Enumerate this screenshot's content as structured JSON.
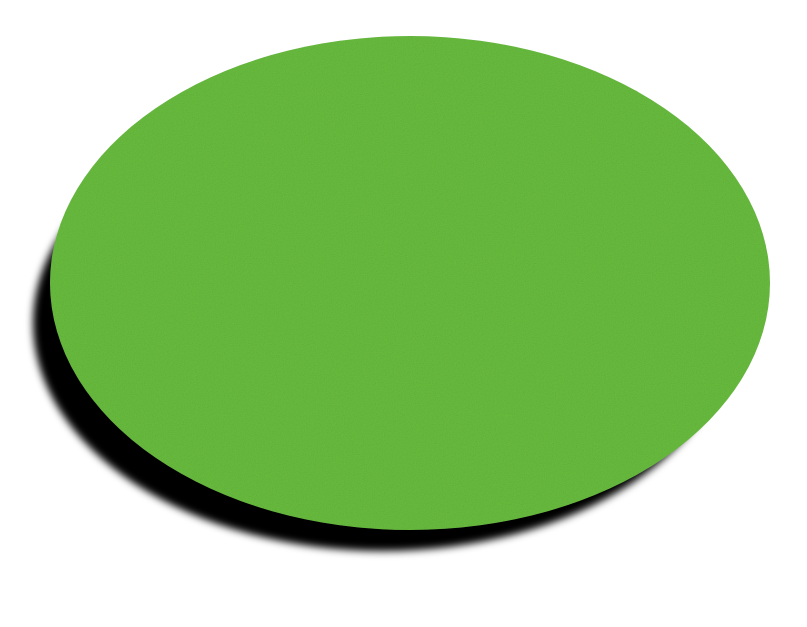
{
  "scene": {
    "background_color": "#ffffff",
    "disc": {
      "shape": "ellipse",
      "fill_color": "#69bd3f",
      "texture": "fine-noise",
      "shadow_color": "#000000"
    }
  }
}
